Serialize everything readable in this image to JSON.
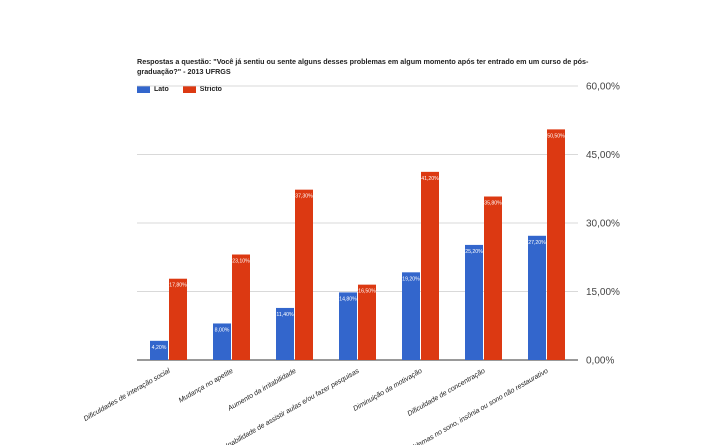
{
  "chart_data": {
    "type": "bar",
    "title": "Respostas a questão: \"Você já sentiu ou sente alguns desses problemas em algum momento após ter entrado em um curso de pós-graduação?\" - 2013 UFRGS",
    "categories": [
      "Dificuldades de interação social",
      "Mudança no apetite",
      "Aumento da irritabilidade",
      "Inabilidade de assistir aulas e/ou fazer pesquisas",
      "Diminuição da motivação",
      "Dificuldade de concentração",
      "Problemas no sono, insônia ou sono não restaurativo"
    ],
    "series": [
      {
        "name": "Lato",
        "color": "#3366cc",
        "values": [
          4.2,
          8.0,
          11.4,
          14.8,
          19.2,
          25.2,
          27.2
        ],
        "labels": [
          "4,20%",
          "8,00%",
          "11,40%",
          "14,80%",
          "19,20%",
          "25,20%",
          "27,20%"
        ]
      },
      {
        "name": "Stricto",
        "color": "#dc3912",
        "values": [
          17.8,
          23.1,
          37.3,
          16.5,
          41.2,
          35.8,
          50.5
        ],
        "labels": [
          "17,80%",
          "23,10%",
          "37,30%",
          "16,50%",
          "41,20%",
          "35,80%",
          "50,50%"
        ]
      }
    ],
    "yticks": [
      0,
      15,
      30,
      45,
      60
    ],
    "ytick_labels": [
      "0,00%",
      "15,00%",
      "30,00%",
      "45,00%",
      "60,00%"
    ],
    "ylim": [
      0,
      60
    ],
    "xlabel": "",
    "ylabel": "",
    "legend_position": "top-left",
    "axis_position": "right"
  }
}
